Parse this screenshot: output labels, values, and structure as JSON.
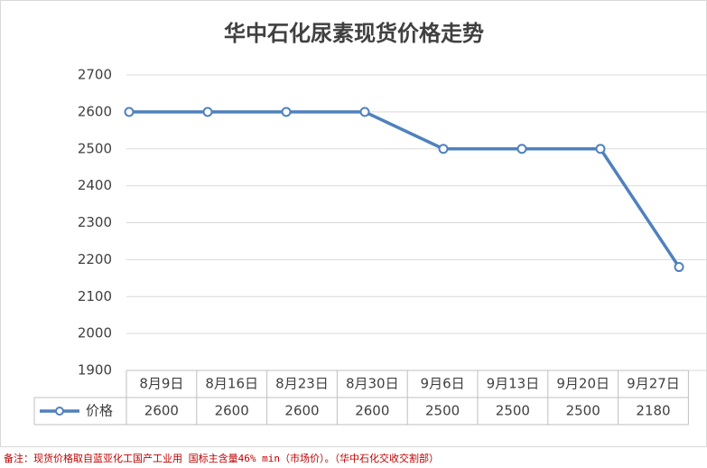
{
  "chart_data": {
    "type": "line",
    "title": "华中石化尿素现货价格走势",
    "categories": [
      "8月9日",
      "8月16日",
      "8月23日",
      "8月30日",
      "9月6日",
      "9月13日",
      "9月20日",
      "9月27日"
    ],
    "series": [
      {
        "name": "价格",
        "color": "#4f81bd",
        "values": [
          2600,
          2600,
          2600,
          2600,
          2500,
          2500,
          2500,
          2180
        ]
      }
    ],
    "ylim": [
      1900,
      2700
    ],
    "yticks": [
      1900,
      2000,
      2100,
      2200,
      2300,
      2400,
      2500,
      2600,
      2700
    ],
    "grid": true,
    "note": "备注：现货价格取自蓝亚化工国产工业用 国标主含量46% min（市场价）。（华中石化交收交割部）"
  }
}
